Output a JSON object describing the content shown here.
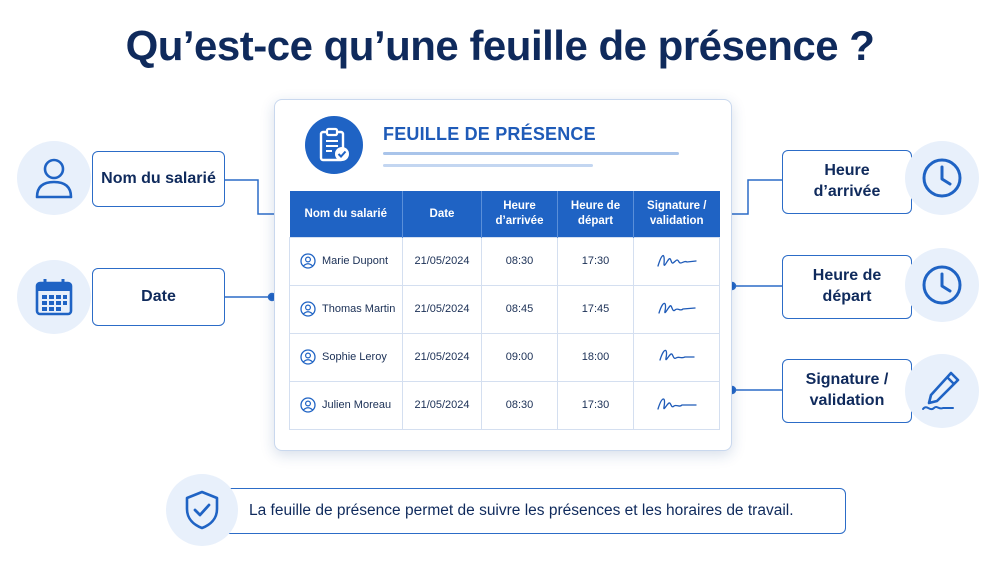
{
  "title": "Qu’est-ce qu’une feuille de présence ?",
  "card": {
    "heading": "FEUILLE DE PRÉSENCE"
  },
  "table": {
    "headers": [
      "Nom du salarié",
      "Date",
      "Heure d’arrivée",
      "Heure de départ",
      "Signature / validation"
    ],
    "rows": [
      {
        "name": "Marie Dupont",
        "date": "21/05/2024",
        "arrival": "08:30",
        "departure": "17:30"
      },
      {
        "name": "Thomas Martin",
        "date": "21/05/2024",
        "arrival": "08:45",
        "departure": "17:45"
      },
      {
        "name": "Sophie Leroy",
        "date": "21/05/2024",
        "arrival": "09:00",
        "departure": "18:00"
      },
      {
        "name": "Julien Moreau",
        "date": "21/05/2024",
        "arrival": "08:30",
        "departure": "17:30"
      }
    ]
  },
  "labels": {
    "employee_name": "Nom du salarié",
    "date": "Date",
    "arrival_time": "Heure d’arrivée",
    "departure_time": "Heure de départ",
    "signature": "Signature / validation"
  },
  "icons": {
    "employee": "user-icon",
    "date": "calendar-icon",
    "arrival": "clock-icon",
    "departure": "clock-icon",
    "signature": "pen-icon",
    "card": "clipboard-check-icon",
    "footer": "shield-check-icon",
    "row": "avatar-icon"
  },
  "colors": {
    "primary": "#1f63c4",
    "dark_text": "#0f2a5c",
    "icon_bg": "#e8f0fb",
    "border": "#2c6cc7"
  },
  "footer": {
    "text": "La feuille de présence permet de suivre les présences et les horaires de travail."
  }
}
